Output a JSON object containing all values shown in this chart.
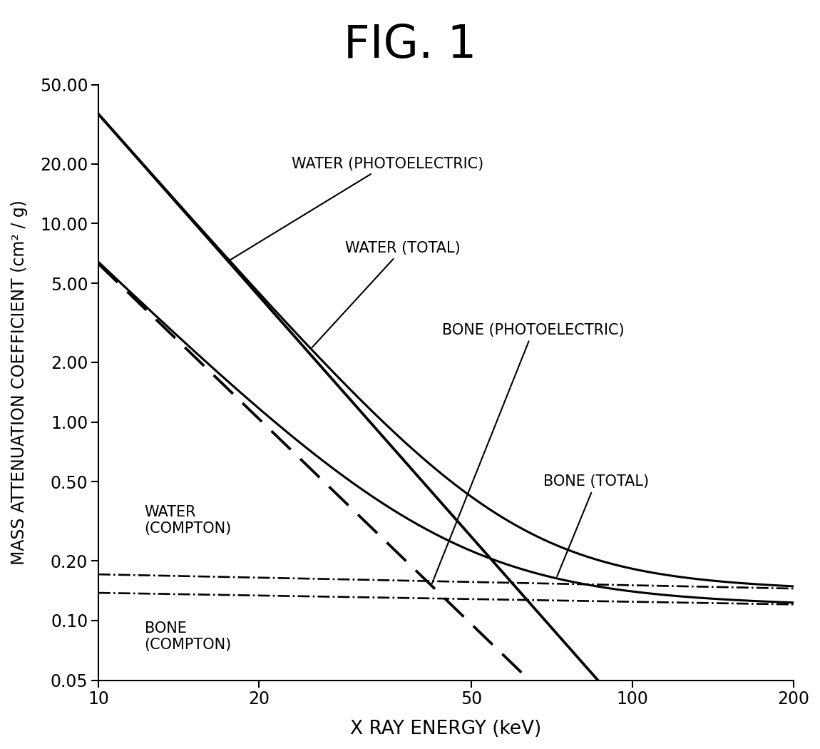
{
  "title": "FIG. 1",
  "xlabel": "X RAY ENERGY (keV)",
  "ylabel": "MASS ATTENUATION COEFFICIENT (cm² / g)",
  "xlim": [
    10,
    200
  ],
  "ylim": [
    0.05,
    50
  ],
  "xticks": [
    10,
    20,
    50,
    100,
    200
  ],
  "yticks": [
    0.05,
    0.1,
    0.2,
    0.5,
    1,
    2,
    5,
    10,
    20,
    50
  ],
  "background_color": "#ffffff"
}
